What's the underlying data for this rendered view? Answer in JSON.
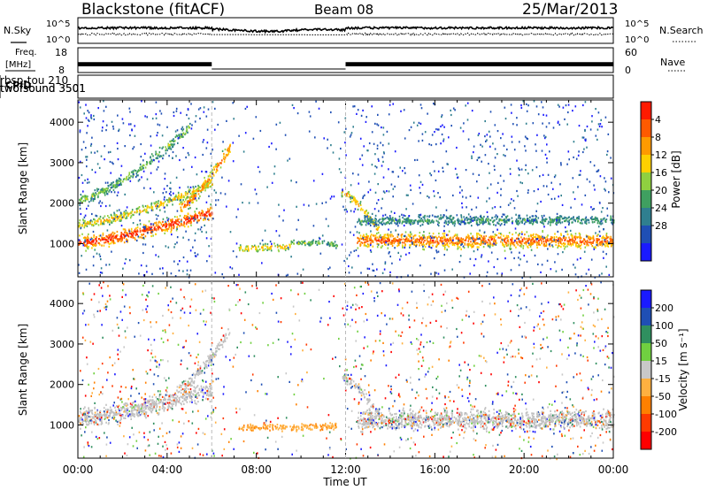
{
  "header": {
    "radar": "Blackstone (fitACF)",
    "beam": "Beam 08",
    "date": "25/Mar/2013"
  },
  "noise_panel": {
    "left_label": "N.Sky",
    "right_label": "N.Search",
    "tick_top": "10^5",
    "tick_bottom": "10^0",
    "right_tick_top": "10^5",
    "right_tick_bottom": "10^0"
  },
  "freq_panel": {
    "left_label_1": "Freq.",
    "left_label_2": "[MHz]",
    "right_label": "Nave",
    "tick_top": "18",
    "tick_bottom": "8",
    "right_tick_top": "60",
    "right_tick_bottom": "0"
  },
  "cpid_panel": {
    "label": "CPID",
    "segments": [
      {
        "name": "twofsound 3501",
        "start_hour": 0,
        "end_hour": 6
      },
      {
        "name": "rbsp-tou 210",
        "start_hour": 6,
        "end_hour": 12
      },
      {
        "name": "twofsound 3501",
        "start_hour": 12,
        "end_hour": 24
      }
    ]
  },
  "xaxis": {
    "label": "Time UT",
    "ticks": [
      "00:00",
      "04:00",
      "08:00",
      "12:00",
      "16:00",
      "20:00",
      "00:00"
    ]
  },
  "power_panel": {
    "ylabel": "Slant Range [km]",
    "yticks": [
      "1000",
      "2000",
      "3000",
      "4000"
    ],
    "colorbar_label": "Power [dB]",
    "colorbar_ticks": [
      "4",
      "8",
      "12",
      "16",
      "20",
      "24",
      "28"
    ],
    "colors": [
      "#1a1aff",
      "#1f4fb4",
      "#2f7f8f",
      "#3fa060",
      "#8fd040",
      "#ffd000",
      "#ff9a00",
      "#ff5a00",
      "#ff1a00"
    ]
  },
  "velocity_panel": {
    "ylabel": "Slant Range [km]",
    "yticks": [
      "1000",
      "2000",
      "3000",
      "4000"
    ],
    "colorbar_label": "Velocity [m s⁻¹]",
    "colorbar_ticks": [
      "200",
      "100",
      "50",
      "15",
      "-15",
      "-50",
      "-100",
      "-200"
    ],
    "colors": [
      "#1a1aff",
      "#1f4fb4",
      "#2f8f5f",
      "#70d040",
      "#c8c8c8",
      "#ffb040",
      "#ff8000",
      "#ff3a00",
      "#ff0000"
    ],
    "ground_color": "#c0c0c0"
  },
  "chart_data": {
    "type": "heatmap",
    "x_unit": "hours UT",
    "xlim": [
      0,
      24
    ],
    "ylim_km": [
      180,
      4550
    ],
    "power_bands": [
      {
        "start": 0,
        "end": 6,
        "r_start": 1050,
        "r_end": 1800,
        "width": 500,
        "level": 0.85
      },
      {
        "start": 0,
        "end": 6,
        "r_start": 1500,
        "r_end": 2500,
        "width": 350,
        "level": 0.55
      },
      {
        "start": 0,
        "end": 5,
        "r_start": 2100,
        "r_end": 3900,
        "width": 350,
        "level": 0.4
      },
      {
        "start": 4.5,
        "end": 6.8,
        "r_start": 1900,
        "r_end": 3400,
        "width": 450,
        "level": 0.7
      },
      {
        "start": 7.2,
        "end": 9.5,
        "r_start": 900,
        "r_end": 950,
        "width": 250,
        "level": 0.6
      },
      {
        "start": 9.5,
        "end": 11.6,
        "r_start": 1050,
        "r_end": 1000,
        "width": 250,
        "level": 0.4
      },
      {
        "start": 11.8,
        "end": 13.5,
        "r_start": 2300,
        "r_end": 1300,
        "width": 350,
        "level": 0.6
      },
      {
        "start": 12.5,
        "end": 24,
        "r_start": 1100,
        "r_end": 1100,
        "width": 550,
        "level": 0.75
      },
      {
        "start": 12.5,
        "end": 24,
        "r_start": 1600,
        "r_end": 1600,
        "width": 350,
        "level": 0.3
      }
    ],
    "velocity_bands": [
      {
        "start": 0,
        "end": 6,
        "r_start": 1200,
        "r_end": 1900,
        "width": 650,
        "ground": true
      },
      {
        "start": 4.5,
        "end": 6.8,
        "r_start": 1900,
        "r_end": 3400,
        "width": 400,
        "ground": true
      },
      {
        "start": 7.2,
        "end": 11.6,
        "r_start": 950,
        "r_end": 1000,
        "width": 250,
        "ground": false,
        "tone": "orange"
      },
      {
        "start": 11.8,
        "end": 13.5,
        "r_start": 2200,
        "r_end": 1300,
        "width": 350,
        "ground": true
      },
      {
        "start": 12.5,
        "end": 24,
        "r_start": 1150,
        "r_end": 1150,
        "width": 700,
        "ground": true
      }
    ],
    "noise_sky_level": 0.45,
    "noise_search_level": 0.2,
    "freq_mhz_segments": [
      {
        "start": 0,
        "end": 6,
        "low": 10.5,
        "high": 12.2
      },
      {
        "start": 12,
        "end": 24,
        "low": 10.5,
        "high": 12.2
      }
    ]
  }
}
